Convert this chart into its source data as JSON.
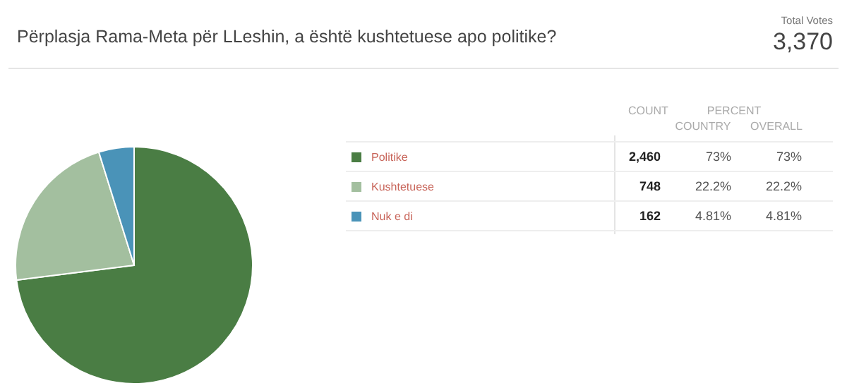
{
  "chart_data": {
    "type": "pie",
    "title": "Përplasja Rama-Meta për LLeshin, a është kushtetuese apo politike?",
    "categories": [
      "Politike",
      "Kushtetuese",
      "Nuk e di"
    ],
    "values": [
      2460,
      748,
      162
    ],
    "colors": [
      "#4a7d44",
      "#a3bf9f",
      "#4a93b8"
    ],
    "value_labels": [
      "2,460",
      "748",
      "162"
    ],
    "legend": "right",
    "annotations": [
      "Total Votes",
      "3,370",
      "COUNT",
      "PERCENT",
      "COUNTRY",
      "OVERALL",
      "73%",
      "73%",
      "22.2%",
      "22.2%",
      "4.81%",
      "4.81%"
    ]
  }
}
